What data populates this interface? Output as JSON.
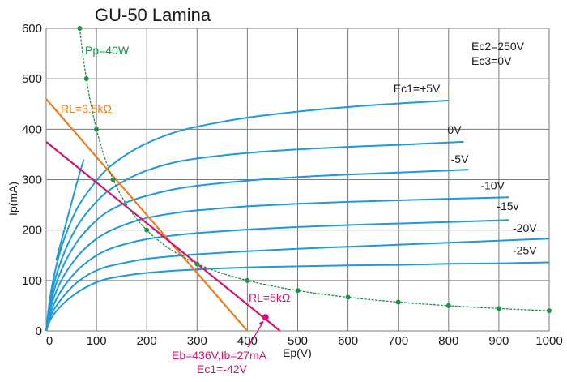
{
  "chart_data": {
    "type": "line",
    "title": "GU-50 Lamina",
    "xlabel": "Ep(V)",
    "ylabel": "Ip(mA)",
    "xlim": [
      0,
      1000
    ],
    "ylim": [
      0,
      600
    ],
    "grid": true,
    "x_ticks": [
      0,
      100,
      200,
      300,
      400,
      500,
      600,
      700,
      800,
      900,
      1000
    ],
    "y_ticks": [
      0,
      100,
      200,
      300,
      400,
      500,
      600
    ],
    "conditions": [
      "Ec2=250V",
      "Ec3=0V"
    ],
    "colors": {
      "curves": "#1e9ad6",
      "pp": "#1d9148",
      "rl_orange": "#f07c1b",
      "rl_magenta": "#d4156f",
      "grid": "#7a7a7a",
      "text": "#1a1a1a"
    },
    "series": [
      {
        "name": "Ec1=+5V",
        "label": "Ec1=+5V",
        "x": [
          10,
          30,
          60,
          90,
          120,
          160,
          200,
          250,
          300,
          400,
          500,
          600,
          700,
          800
        ],
        "y": [
          80,
          165,
          240,
          285,
          320,
          350,
          372,
          392,
          405,
          423,
          435,
          444,
          451,
          457
        ]
      },
      {
        "name": "0V",
        "label": "0V",
        "x": [
          10,
          30,
          60,
          90,
          120,
          160,
          200,
          250,
          300,
          400,
          500,
          600,
          700,
          830
        ],
        "y": [
          70,
          140,
          205,
          245,
          275,
          300,
          318,
          333,
          342,
          353,
          360,
          365,
          369,
          375
        ]
      },
      {
        "name": "-5V",
        "label": "-5V",
        "x": [
          10,
          30,
          60,
          90,
          120,
          160,
          200,
          250,
          300,
          400,
          500,
          600,
          700,
          800,
          840
        ],
        "y": [
          60,
          120,
          175,
          210,
          235,
          255,
          268,
          280,
          288,
          298,
          305,
          310,
          314,
          318,
          320
        ]
      },
      {
        "name": "-10V",
        "label": "-10V",
        "x": [
          10,
          30,
          60,
          90,
          120,
          160,
          200,
          250,
          300,
          400,
          500,
          600,
          700,
          800,
          920
        ],
        "y": [
          50,
          100,
          145,
          175,
          195,
          212,
          224,
          233,
          239,
          247,
          252,
          256,
          259,
          262,
          265
        ]
      },
      {
        "name": "-15v",
        "label": "-15v",
        "x": [
          10,
          30,
          60,
          90,
          120,
          160,
          200,
          250,
          300,
          400,
          500,
          600,
          700,
          800,
          920
        ],
        "y": [
          40,
          80,
          118,
          143,
          160,
          173,
          182,
          189,
          194,
          201,
          206,
          210,
          213,
          216,
          220
        ]
      },
      {
        "name": "-20V",
        "label": "-20V",
        "x": [
          10,
          30,
          60,
          90,
          120,
          160,
          200,
          250,
          300,
          400,
          500,
          600,
          700,
          800,
          900,
          1000
        ],
        "y": [
          32,
          63,
          95,
          115,
          127,
          136,
          143,
          148,
          152,
          158,
          163,
          167,
          171,
          175,
          179,
          183
        ]
      },
      {
        "name": "-25V",
        "label": "-25V",
        "x": [
          10,
          30,
          60,
          90,
          120,
          160,
          200,
          250,
          300,
          400,
          500,
          600,
          700,
          800,
          900,
          1000
        ],
        "y": [
          25,
          50,
          75,
          92,
          103,
          110,
          115,
          119,
          122,
          126,
          128,
          130,
          131,
          133,
          134,
          136
        ]
      }
    ],
    "pp_curve": {
      "label": "Pp=40W",
      "points": [
        {
          "x": 66.7,
          "y": 600
        },
        {
          "x": 80,
          "y": 500
        },
        {
          "x": 100,
          "y": 400
        },
        {
          "x": 133,
          "y": 300
        },
        {
          "x": 200,
          "y": 200
        },
        {
          "x": 300,
          "y": 133
        },
        {
          "x": 400,
          "y": 100
        },
        {
          "x": 500,
          "y": 80
        },
        {
          "x": 600,
          "y": 66.7
        },
        {
          "x": 700,
          "y": 57.1
        },
        {
          "x": 800,
          "y": 50
        },
        {
          "x": 900,
          "y": 44.4
        },
        {
          "x": 1000,
          "y": 40
        }
      ]
    },
    "load_lines": [
      {
        "label": "RL=3.5kΩ",
        "color_key": "rl_orange",
        "x": [
          0,
          400
        ],
        "y": [
          460,
          0
        ]
      },
      {
        "label": "RL=5kΩ",
        "color_key": "rl_magenta",
        "x": [
          0,
          465
        ],
        "y": [
          375,
          0
        ]
      }
    ],
    "steep_segment": {
      "x": [
        20,
        60,
        75
      ],
      "y": [
        140,
        290,
        340
      ]
    },
    "operating_point": {
      "x": 436,
      "y": 27,
      "label_lines": [
        "Eb=436V,Ib=27mA",
        "Ec1=-42V"
      ]
    }
  }
}
